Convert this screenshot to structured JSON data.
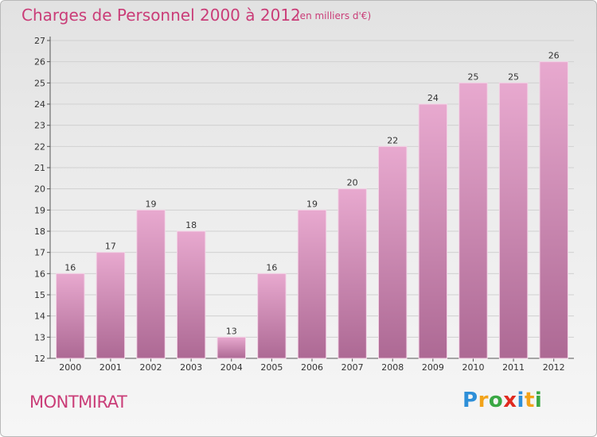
{
  "page": {
    "title": "Charges de Personnel 2000 à 2012",
    "subtitle": "(en milliers d'€)",
    "commune": "MONTMIRAT",
    "logo": {
      "letters": [
        "P",
        "r",
        "o",
        "x",
        "i",
        "t",
        "i"
      ],
      "colors": [
        "#2e8fd8",
        "#f2a31a",
        "#3aa844",
        "#e02a1f",
        "#2e8fd8",
        "#f2a31a",
        "#3aa844"
      ]
    }
  },
  "chart_data": {
    "type": "bar",
    "title": "Charges de Personnel 2000 à 2012",
    "subtitle": "(en milliers d'€)",
    "categories": [
      "2000",
      "2001",
      "2002",
      "2003",
      "2004",
      "2005",
      "2006",
      "2007",
      "2008",
      "2009",
      "2010",
      "2011",
      "2012"
    ],
    "values": [
      16,
      17,
      19,
      18,
      13,
      16,
      19,
      20,
      22,
      24,
      25,
      25,
      26
    ],
    "ylim": [
      12,
      27
    ],
    "yticks": [
      12,
      13,
      14,
      15,
      16,
      17,
      18,
      19,
      20,
      21,
      22,
      23,
      24,
      25,
      26,
      27
    ],
    "grid": true,
    "bar_color_top": "#e8a9cf",
    "bar_color_bottom": "#ad6994"
  }
}
